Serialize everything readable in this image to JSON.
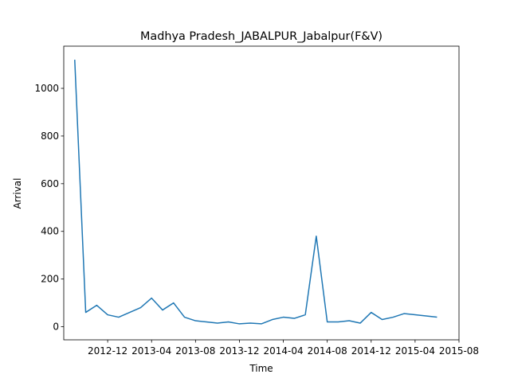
{
  "chart_data": {
    "type": "line",
    "title": "Madhya Pradesh_JABALPUR_Jabalpur(F&V)",
    "xlabel": "Time",
    "ylabel": "Arrival",
    "x": [
      "2012-09",
      "2012-10",
      "2012-11",
      "2012-12",
      "2013-01",
      "2013-02",
      "2013-03",
      "2013-04",
      "2013-05",
      "2013-06",
      "2013-07",
      "2013-08",
      "2013-09",
      "2013-10",
      "2013-11",
      "2013-12",
      "2014-01",
      "2014-02",
      "2014-03",
      "2014-04",
      "2014-05",
      "2014-06",
      "2014-07",
      "2014-08",
      "2014-09",
      "2014-10",
      "2014-11",
      "2014-12",
      "2015-01",
      "2015-02",
      "2015-03",
      "2015-04",
      "2015-05",
      "2015-06"
    ],
    "series": [
      {
        "name": "Arrival",
        "color": "#1f77b4",
        "values": [
          1120,
          60,
          90,
          50,
          40,
          60,
          80,
          120,
          70,
          100,
          40,
          25,
          20,
          15,
          20,
          12,
          15,
          12,
          30,
          40,
          35,
          50,
          380,
          20,
          20,
          25,
          15,
          60,
          30,
          40,
          55,
          50,
          45,
          40
        ]
      }
    ],
    "xlim": [
      "2012-08",
      "2015-08"
    ],
    "xticks": [
      "2012-12",
      "2013-04",
      "2013-08",
      "2013-12",
      "2014-04",
      "2014-08",
      "2014-12",
      "2015-04",
      "2015-08"
    ],
    "ylim": [
      -55,
      1177
    ],
    "yticks": [
      0,
      200,
      400,
      600,
      800,
      1000
    ]
  }
}
